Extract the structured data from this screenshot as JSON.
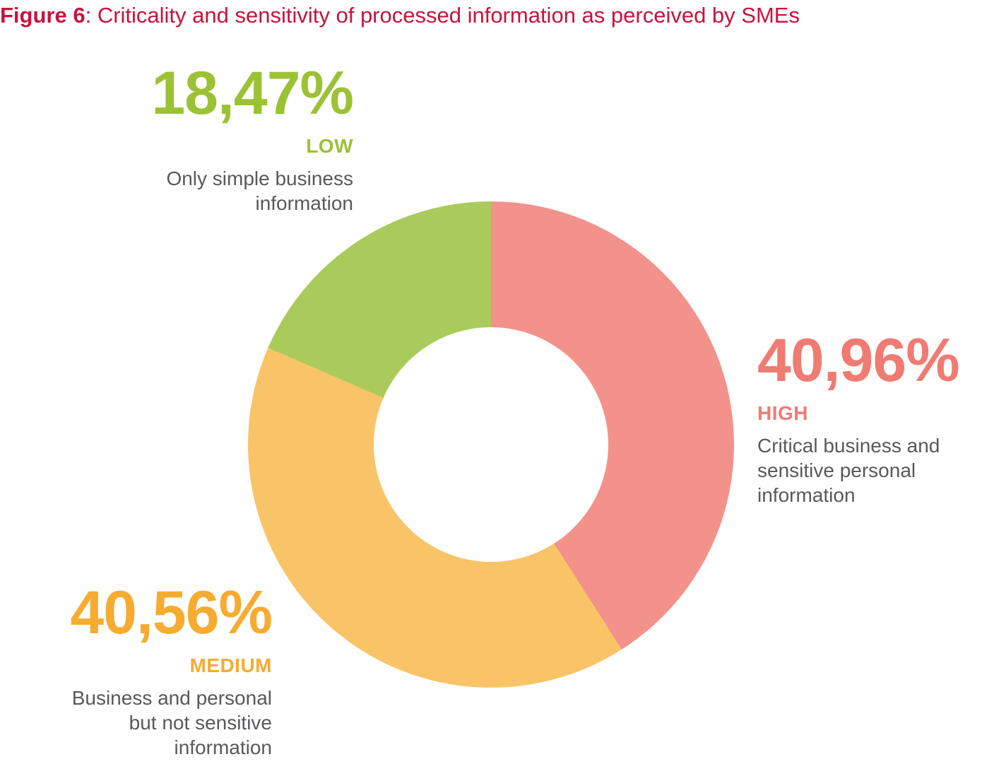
{
  "title": {
    "figure_label": "Figure 6",
    "separator_and_text": ": Criticality and sensitivity of processed information as perceived by SMEs",
    "color": "#C8133E"
  },
  "chart_data": {
    "type": "pie",
    "subtype": "donut",
    "title": "Figure 6: Criticality and sensitivity of processed information as perceived by SMEs",
    "start_angle_deg": 0,
    "direction": "clockwise",
    "inner_radius_ratio": 0.48,
    "total_percent": 99.99,
    "description_text_color": "#58595B",
    "segments": [
      {
        "name": "HIGH",
        "value": 40.96,
        "value_display": "40,96%",
        "description": "Critical business and\nsensitive personal\ninformation",
        "slice_color": "#F2928B",
        "text_color": "#EF7B72",
        "label_position": "right"
      },
      {
        "name": "MEDIUM",
        "value": 40.56,
        "value_display": "40,56%",
        "description": "Business and personal\nbut not sensitive\ninformation",
        "slice_color": "#F9C468",
        "text_color": "#F7AB31",
        "label_position": "bottom-left"
      },
      {
        "name": "LOW",
        "value": 18.47,
        "value_display": "18,47%",
        "description": "Only simple business\ninformation",
        "slice_color": "#AACB5C",
        "text_color": "#9BC234",
        "label_position": "top-left"
      }
    ]
  }
}
